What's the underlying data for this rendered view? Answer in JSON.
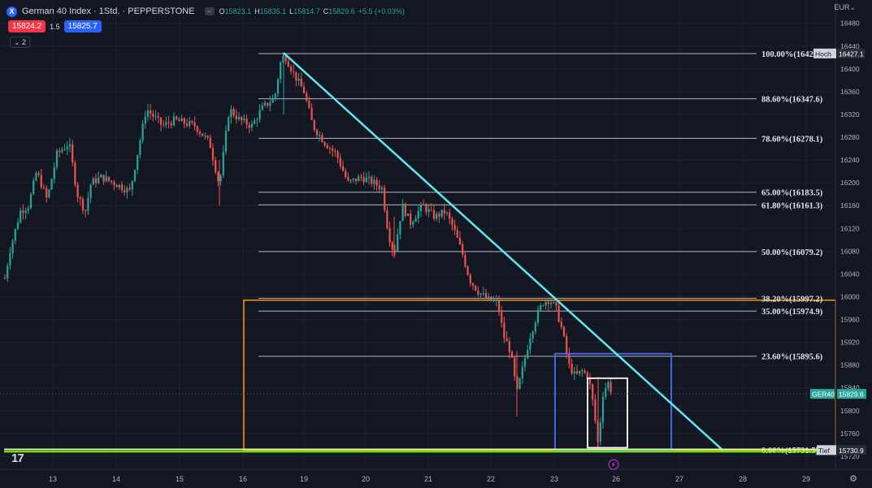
{
  "header": {
    "logo_text": "X",
    "title": "German 40 Index · 1Std. · PEPPERSTONE",
    "collapse_symbol": "−",
    "ohlc": {
      "o_label": "O",
      "o": "15823.1",
      "h_label": "H",
      "h": "15835.1",
      "l_label": "L",
      "l": "15814.7",
      "c_label": "C",
      "c": "15829.6",
      "change": "+5.5 (+0.03%)"
    }
  },
  "trade": {
    "sell": "15824.2",
    "spread": "1.5",
    "buy": "15825.7"
  },
  "indicator_toggle": "⌄ 2",
  "currency": "EUR⌄",
  "tv_logo": "17",
  "gear_icon": "⚙",
  "colors": {
    "background": "#131722",
    "up": "#26a69a",
    "down": "#ef5350",
    "fib": "#b2b5be",
    "trend": "#5ee8f0",
    "orange": "#ff9800",
    "blue_box": "#4a6cf7",
    "white_box": "#ffffff",
    "low_line": "#76ff03"
  },
  "chart_data": {
    "type": "candlestick",
    "symbol": "GER40",
    "timeframe": "1Std.",
    "y_axis": {
      "range": [
        15700,
        16490
      ],
      "ticks": [
        15720,
        15760,
        15800,
        15840,
        15880,
        15920,
        15960,
        16000,
        16040,
        16080,
        16120,
        16160,
        16200,
        16240,
        16280,
        16320,
        16360,
        16400,
        16440,
        16480
      ]
    },
    "x_axis": {
      "tick_labels": [
        "13",
        "14",
        "15",
        "16",
        "19",
        "20",
        "21",
        "22",
        "23",
        "26",
        "27",
        "28",
        "29"
      ]
    },
    "fibonacci": [
      {
        "label": "100.00%(16426.9)",
        "price": 16426.9
      },
      {
        "label": "88.60%(16347.6)",
        "price": 16347.6
      },
      {
        "label": "78.60%(16278.1)",
        "price": 16278.1
      },
      {
        "label": "65.00%(16183.5)",
        "price": 16183.5
      },
      {
        "label": "61.80%(16161.3)",
        "price": 16161.3
      },
      {
        "label": "50.00%(16079.2)",
        "price": 16079.2
      },
      {
        "label": "38.20%(15997.2)",
        "price": 15997.2
      },
      {
        "label": "35.00%(15974.9)",
        "price": 15974.9
      },
      {
        "label": "23.60%(15895.6)",
        "price": 15895.6
      },
      {
        "label": "0.00%(15731.5)",
        "price": 15731.5
      }
    ],
    "price_labels": [
      {
        "name": "Hoch",
        "value": "16427.1",
        "price": 16427.1
      },
      {
        "name": "GER40",
        "value": "15829.6",
        "price": 15829.6
      },
      {
        "name": "Tief",
        "value": "15730.9",
        "price": 15730.9
      }
    ],
    "trend_line": {
      "start_price": 16428,
      "end_price": 15730
    },
    "orange_box_top": 15994,
    "orange_box_bottom": 15731,
    "blue_box": [
      15731,
      15900
    ],
    "white_box": [
      15735,
      15857
    ],
    "low_line_price": 15728,
    "candles_source_path": [
      [
        0,
        15985
      ],
      [
        12,
        16080
      ],
      [
        25,
        16150
      ],
      [
        35,
        16160
      ],
      [
        45,
        16220
      ],
      [
        58,
        16170
      ],
      [
        70,
        16250
      ],
      [
        85,
        16270
      ],
      [
        95,
        16180
      ],
      [
        105,
        16150
      ],
      [
        112,
        16200
      ],
      [
        125,
        16210
      ],
      [
        140,
        16200
      ],
      [
        160,
        16185
      ],
      [
        180,
        16330
      ],
      [
        200,
        16300
      ],
      [
        215,
        16310
      ],
      [
        240,
        16300
      ],
      [
        258,
        16270
      ],
      [
        270,
        16195
      ],
      [
        282,
        16330
      ],
      [
        295,
        16310
      ],
      [
        310,
        16300
      ],
      [
        322,
        16330
      ],
      [
        338,
        16350
      ],
      [
        345,
        16410
      ],
      [
        350,
        16425
      ],
      [
        362,
        16390
      ],
      [
        374,
        16360
      ],
      [
        385,
        16300
      ],
      [
        400,
        16270
      ],
      [
        414,
        16250
      ],
      [
        428,
        16200
      ],
      [
        445,
        16210
      ],
      [
        460,
        16200
      ],
      [
        470,
        16190
      ],
      [
        478,
        16110
      ],
      [
        485,
        16075
      ],
      [
        495,
        16160
      ],
      [
        505,
        16130
      ],
      [
        520,
        16160
      ],
      [
        535,
        16140
      ],
      [
        548,
        16150
      ],
      [
        558,
        16120
      ],
      [
        568,
        16080
      ],
      [
        578,
        16030
      ],
      [
        588,
        16010
      ],
      [
        600,
        15995
      ],
      [
        612,
        15990
      ],
      [
        620,
        15930
      ],
      [
        628,
        15905
      ],
      [
        636,
        15830
      ],
      [
        644,
        15880
      ],
      [
        652,
        15930
      ],
      [
        660,
        15965
      ],
      [
        668,
        15990
      ],
      [
        676,
        15995
      ],
      [
        684,
        15980
      ],
      [
        692,
        15940
      ],
      [
        700,
        15880
      ],
      [
        708,
        15860
      ],
      [
        716,
        15870
      ],
      [
        724,
        15860
      ],
      [
        730,
        15810
      ],
      [
        736,
        15740
      ],
      [
        742,
        15830
      ],
      [
        748,
        15850
      ],
      [
        754,
        15828
      ]
    ]
  }
}
